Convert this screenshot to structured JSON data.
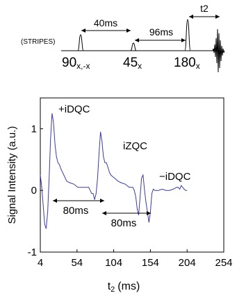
{
  "sequence": {
    "stripes_label": "(STRIPES)",
    "interval_1": "40ms",
    "interval_2": "96ms",
    "t2_label": "t2",
    "pulse_1": {
      "angle": "90",
      "phase": "x,-x"
    },
    "pulse_2": {
      "angle": "45",
      "phase": "x"
    },
    "pulse_3": {
      "angle": "180",
      "phase": "x"
    }
  },
  "chart_data": {
    "type": "line",
    "xlabel_main": "t",
    "xlabel_sub": "2",
    "xlabel_unit": "(ms)",
    "ylabel": "Signal Intensity  (a.u.)",
    "xlim": [
      4,
      254
    ],
    "ylim": [
      -1,
      1.5
    ],
    "xticks": [
      4,
      54,
      104,
      154,
      204,
      254
    ],
    "yticks": [
      -1,
      0,
      1
    ],
    "annotations": {
      "plus_idqc": "+iDQC",
      "izqc": "iZQC",
      "minus_idqc": "−iDQC",
      "span_1": "80ms",
      "span_2": "80ms"
    },
    "series": [
      {
        "color": "#3a3aa6",
        "x": [
          4,
          6,
          8,
          10,
          12,
          14,
          16,
          18,
          20,
          22,
          24,
          26,
          28,
          30,
          32,
          34,
          36,
          38,
          40,
          45,
          50,
          55,
          60,
          65,
          70,
          72,
          74,
          76,
          78,
          80,
          82,
          84,
          86,
          88,
          90,
          92,
          94,
          96,
          98,
          100,
          105,
          110,
          115,
          120,
          125,
          130,
          132,
          134,
          136,
          138,
          140,
          142,
          144,
          146,
          148,
          150,
          152,
          154,
          156,
          158,
          160,
          165,
          170,
          175,
          180,
          185,
          190,
          192,
          194,
          196,
          198,
          200,
          202,
          204
        ],
        "y": [
          0.25,
          0.05,
          -0.25,
          -0.55,
          -0.62,
          -0.35,
          0.2,
          0.85,
          1.25,
          1.1,
          0.75,
          0.55,
          0.45,
          0.42,
          0.35,
          0.3,
          0.25,
          0.2,
          0.15,
          0.12,
          0.1,
          0.05,
          0.05,
          0.05,
          0.05,
          0.0,
          -0.05,
          -0.05,
          -0.15,
          -0.05,
          0.2,
          0.6,
          0.95,
          0.8,
          0.55,
          0.45,
          0.45,
          0.38,
          0.3,
          0.25,
          0.2,
          0.15,
          0.12,
          0.1,
          0.05,
          0.05,
          0.0,
          -0.1,
          -0.3,
          -0.4,
          -0.1,
          0.2,
          0.25,
          0.0,
          -0.2,
          -0.35,
          -0.52,
          -0.35,
          -0.05,
          0.02,
          0.0,
          0.0,
          0.02,
          0.0,
          0.0,
          0.02,
          0.05,
          0.05,
          0.02,
          0.08,
          0.05,
          0.02,
          0.0,
          0.0
        ]
      }
    ]
  }
}
